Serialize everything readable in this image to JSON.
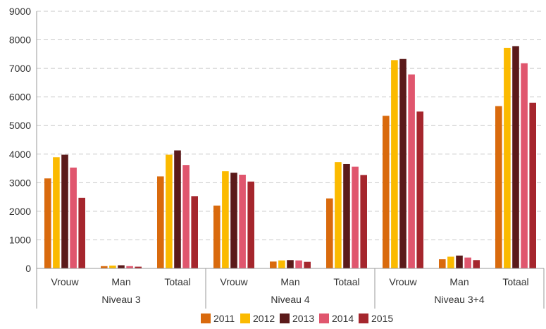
{
  "chart_data": {
    "type": "bar",
    "title": "",
    "xlabel": "",
    "ylabel": "",
    "ylim": [
      0,
      9000
    ],
    "yticks": [
      0,
      1000,
      2000,
      3000,
      4000,
      5000,
      6000,
      7000,
      8000,
      9000
    ],
    "grid": "horizontal-dashed",
    "legend_position": "bottom",
    "groups": [
      {
        "label": "Niveau 3",
        "categories": [
          "Vrouw",
          "Man",
          "Totaal"
        ]
      },
      {
        "label": "Niveau 4",
        "categories": [
          "Vrouw",
          "Man",
          "Totaal"
        ]
      },
      {
        "label": "Niveau 3+4",
        "categories": [
          "Vrouw",
          "Man",
          "Totaal"
        ]
      }
    ],
    "categories": [
      "Vrouw",
      "Man",
      "Totaal",
      "Vrouw",
      "Man",
      "Totaal",
      "Vrouw",
      "Man",
      "Totaal"
    ],
    "series": [
      {
        "name": "2011",
        "color": "#D96A0D",
        "values": [
          3150,
          80,
          3220,
          2200,
          240,
          2450,
          5340,
          320,
          5680
        ]
      },
      {
        "name": "2012",
        "color": "#FBBA00",
        "values": [
          3890,
          100,
          3980,
          3400,
          280,
          3720,
          7290,
          410,
          7720
        ]
      },
      {
        "name": "2013",
        "color": "#5B1A1A",
        "values": [
          3980,
          110,
          4130,
          3350,
          290,
          3650,
          7330,
          450,
          7780
        ]
      },
      {
        "name": "2014",
        "color": "#E0566E",
        "values": [
          3530,
          80,
          3620,
          3280,
          280,
          3560,
          6790,
          380,
          7180
        ]
      },
      {
        "name": "2015",
        "color": "#A5262D",
        "values": [
          2470,
          60,
          2530,
          3040,
          230,
          3270,
          5490,
          290,
          5800
        ]
      }
    ]
  }
}
